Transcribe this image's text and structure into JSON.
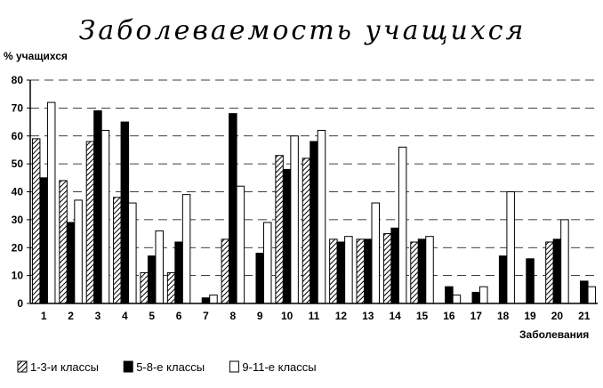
{
  "chart_data": {
    "type": "bar",
    "title": "Заболеваемость учащихся",
    "ylabel": "% учащихся",
    "xlabel": "Заболевания",
    "ylim": [
      0,
      80
    ],
    "yticks": [
      0,
      10,
      20,
      30,
      40,
      50,
      60,
      70,
      80
    ],
    "grid": true,
    "legend_position": "bottom-left",
    "categories": [
      "1",
      "2",
      "3",
      "4",
      "5",
      "6",
      "7",
      "8",
      "9",
      "10",
      "11",
      "12",
      "13",
      "14",
      "15",
      "16",
      "17",
      "18",
      "19",
      "20",
      "21"
    ],
    "series": [
      {
        "name": "1-3-и классы",
        "pattern": "hatched",
        "values": [
          59,
          44,
          58,
          38,
          11,
          11,
          0,
          23,
          0,
          53,
          52,
          23,
          23,
          25,
          22,
          0,
          0,
          0,
          0,
          22,
          0
        ]
      },
      {
        "name": "5-8-е классы",
        "pattern": "solid",
        "values": [
          45,
          29,
          69,
          65,
          17,
          22,
          2,
          68,
          18,
          48,
          58,
          22,
          23,
          27,
          23,
          6,
          4,
          17,
          16,
          23,
          8
        ]
      },
      {
        "name": "9-11-е классы",
        "pattern": "white",
        "values": [
          72,
          37,
          62,
          36,
          26,
          39,
          3,
          42,
          29,
          60,
          62,
          24,
          36,
          56,
          24,
          3,
          6,
          40,
          0,
          30,
          6
        ]
      }
    ]
  }
}
